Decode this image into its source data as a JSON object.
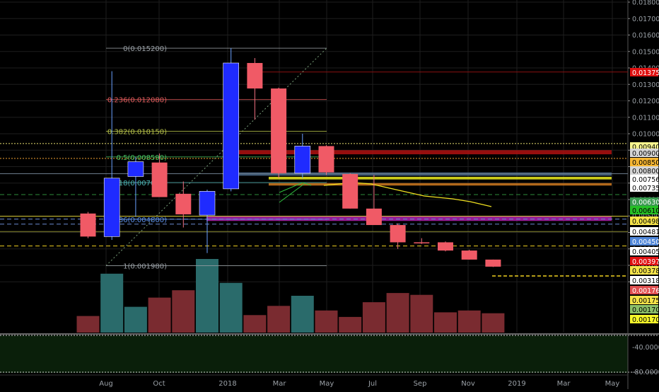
{
  "chart_data": {
    "type": "candlestick",
    "price_axis": {
      "ticks": [
        "0.018000",
        "0.017000",
        "0.016000",
        "0.015000",
        "0.014000",
        "0.013000",
        "0.012000",
        "0.011000",
        "0.010000",
        "0.009000",
        "0.008000",
        "0.007000",
        "0.006000",
        "0.005000",
        "0.004000",
        "0.003000",
        "0.002000",
        "0.001000"
      ],
      "ylim": [
        0.0012,
        0.0185
      ]
    },
    "time_axis": {
      "labels": [
        "Aug",
        "Oct",
        "2018",
        "Mar",
        "May",
        "Jul",
        "Sep",
        "Nov",
        "2019",
        "Mar",
        "May"
      ]
    },
    "candles": [
      {
        "period": "2017-06",
        "open": 0.00515,
        "high": 0.00525,
        "low": 0.00365,
        "close": 0.00375
      },
      {
        "period": "2017-07",
        "open": 0.00375,
        "high": 0.0138,
        "low": 0.00355,
        "close": 0.0073
      },
      {
        "period": "2017-08",
        "open": 0.0074,
        "high": 0.0086,
        "low": 0.00495,
        "close": 0.0083
      },
      {
        "period": "2017-09",
        "open": 0.00825,
        "high": 0.0088,
        "low": 0.00615,
        "close": 0.00615
      },
      {
        "period": "2017-10",
        "open": 0.00635,
        "high": 0.0071,
        "low": 0.0043,
        "close": 0.0051
      },
      {
        "period": "2017-11",
        "open": 0.00505,
        "high": 0.0066,
        "low": 0.00275,
        "close": 0.0065
      },
      {
        "period": "2017-12",
        "open": 0.00665,
        "high": 0.0152,
        "low": 0.0065,
        "close": 0.0143
      },
      {
        "period": "2018-01",
        "open": 0.0143,
        "high": 0.0146,
        "low": 0.01085,
        "close": 0.01275
      },
      {
        "period": "2018-02",
        "open": 0.01275,
        "high": 0.0128,
        "low": 0.0073,
        "close": 0.0076
      },
      {
        "period": "2018-03",
        "open": 0.0076,
        "high": 0.01,
        "low": 0.0073,
        "close": 0.00925
      },
      {
        "period": "2018-04",
        "open": 0.00925,
        "high": 0.0093,
        "low": 0.0075,
        "close": 0.00765
      },
      {
        "period": "2018-05",
        "open": 0.00755,
        "high": 0.0076,
        "low": 0.00545,
        "close": 0.00545
      },
      {
        "period": "2018-06",
        "open": 0.00545,
        "high": 0.0075,
        "low": 0.00445,
        "close": 0.00445
      },
      {
        "period": "2018-07",
        "open": 0.00445,
        "high": 0.00455,
        "low": 0.003,
        "close": 0.0034
      },
      {
        "period": "2018-08",
        "open": 0.0034,
        "high": 0.00365,
        "low": 0.0033,
        "close": 0.00338
      },
      {
        "period": "2018-09",
        "open": 0.0034,
        "high": 0.00345,
        "low": 0.00285,
        "close": 0.0029
      },
      {
        "period": "2018-10",
        "open": 0.0029,
        "high": 0.00295,
        "low": 0.00235,
        "close": 0.00235
      },
      {
        "period": "2018-11",
        "open": 0.00235,
        "high": 0.00235,
        "low": 0.0019,
        "close": 0.00192
      }
    ],
    "volume": [
      {
        "period": "2017-06",
        "value": 0.18,
        "dir": "down"
      },
      {
        "period": "2017-07",
        "value": 0.64,
        "dir": "up"
      },
      {
        "period": "2017-08",
        "value": 0.28,
        "dir": "up"
      },
      {
        "period": "2017-09",
        "value": 0.38,
        "dir": "down"
      },
      {
        "period": "2017-10",
        "value": 0.46,
        "dir": "down"
      },
      {
        "period": "2017-11",
        "value": 0.8,
        "dir": "up"
      },
      {
        "period": "2017-12",
        "value": 0.54,
        "dir": "up"
      },
      {
        "period": "2018-01",
        "value": 0.19,
        "dir": "down"
      },
      {
        "period": "2018-02",
        "value": 0.29,
        "dir": "down"
      },
      {
        "period": "2018-03",
        "value": 0.4,
        "dir": "up"
      },
      {
        "period": "2018-04",
        "value": 0.24,
        "dir": "down"
      },
      {
        "period": "2018-05",
        "value": 0.17,
        "dir": "down"
      },
      {
        "period": "2018-06",
        "value": 0.33,
        "dir": "down"
      },
      {
        "period": "2018-07",
        "value": 0.43,
        "dir": "down"
      },
      {
        "period": "2018-08",
        "value": 0.41,
        "dir": "down"
      },
      {
        "period": "2018-09",
        "value": 0.22,
        "dir": "down"
      },
      {
        "period": "2018-10",
        "value": 0.24,
        "dir": "down"
      },
      {
        "period": "2018-11",
        "value": 0.21,
        "dir": "down"
      }
    ],
    "fibonacci": {
      "levels": [
        {
          "label": "0(0.015200)",
          "value": 0.0152,
          "color": "#9aa0a6"
        },
        {
          "label": "0.236(0.012080)",
          "value": 0.01208,
          "color": "#e05b5b"
        },
        {
          "label": "0.382(0.010150)",
          "value": 0.01015,
          "color": "#b7c24a"
        },
        {
          "label": "0.5(0.008590)",
          "value": 0.00859,
          "color": "#48c060"
        },
        {
          "label": "0.618(0.007030)",
          "value": 0.00703,
          "color": "#4ab0b0"
        },
        {
          "label": "0.786(0.004800)",
          "value": 0.0048,
          "color": "#5b8ee6"
        },
        {
          "label": "1(0.001980)",
          "value": 0.00198,
          "color": "#9aa0a6"
        }
      ]
    },
    "price_tags": [
      {
        "text": "0.013754",
        "bg": "#e01010",
        "fg": "#ffffff"
      },
      {
        "text": "0.009405",
        "bg": "#f7f58e",
        "fg": "#000000"
      },
      {
        "text": "0.009000",
        "bg": "#d6d6d6",
        "fg": "#000000"
      },
      {
        "text": "0.008500",
        "bg": "#f7b733",
        "fg": "#000000"
      },
      {
        "text": "0.008000",
        "bg": "#d6d6d6",
        "fg": "#000000"
      },
      {
        "text": "0.007568",
        "bg": "#ffffff",
        "fg": "#000000"
      },
      {
        "text": "0.007356",
        "bg": "#ffffff",
        "fg": "#000000"
      },
      {
        "text": "0.006300",
        "bg": "#3a9a50",
        "fg": "#ffffff"
      },
      {
        "text": "0.006100",
        "bg": "#25c025",
        "fg": "#000000"
      },
      {
        "text": "0.004985",
        "bg": "#f6e44a",
        "fg": "#000000"
      },
      {
        "text": "0.004810",
        "bg": "#ffffff",
        "fg": "#000000"
      },
      {
        "text": "0.004504",
        "bg": "#4f86d8",
        "fg": "#ffffff"
      },
      {
        "text": "0.004055",
        "bg": "#ffffff",
        "fg": "#000000"
      },
      {
        "text": "0.003978",
        "bg": "#e01010",
        "fg": "#ffffff"
      },
      {
        "text": "0.003780",
        "bg": "#f6e44a",
        "fg": "#000000"
      },
      {
        "text": "0.003180",
        "bg": "#ffffff",
        "fg": "#000000"
      },
      {
        "text": "0.001769",
        "bg": "#e05050",
        "fg": "#ffffff"
      },
      {
        "text": "0.001755",
        "bg": "#f6e44a",
        "fg": "#000000"
      },
      {
        "text": "0.001700",
        "bg": "#8dc06a",
        "fg": "#000000"
      },
      {
        "text": "0.001704",
        "bg": "#f6f62a",
        "fg": "#000000"
      }
    ],
    "horizontal_lines": [
      {
        "value": 0.013754,
        "color": "#8a1010",
        "style": "solid"
      },
      {
        "value": 0.009405,
        "color": "#e8e070",
        "style": "dotted"
      },
      {
        "value": 0.0085,
        "color": "#f0a030",
        "style": "dotted"
      },
      {
        "value": 0.007568,
        "color": "#6a7a8a",
        "style": "solid"
      },
      {
        "value": 0.0063,
        "color": "#2e8b3a",
        "style": "dashed"
      },
      {
        "value": 0.004985,
        "color": "#d6c830",
        "style": "solid"
      },
      {
        "value": 0.00481,
        "color": "#6a8ad0",
        "style": "dashed"
      },
      {
        "value": 0.004504,
        "color": "#6a8ad0",
        "style": "dashed"
      },
      {
        "value": 0.004055,
        "color": "#8a8a30",
        "style": "solid"
      },
      {
        "value": 0.00318,
        "color": "#f0d020",
        "style": "dashed"
      }
    ],
    "zones": [
      {
        "from": 0.009,
        "to": 0.00875,
        "color": "#b01010"
      },
      {
        "from": 0.00765,
        "to": 0.00745,
        "color": "#4a6a8a"
      },
      {
        "from": 0.00738,
        "to": 0.00722,
        "color": "#f0f020"
      },
      {
        "from": 0.007,
        "to": 0.00685,
        "color": "#d07a20"
      },
      {
        "from": 0.005,
        "to": 0.0047,
        "color": "#b020b0"
      }
    ],
    "indicator_pane": {
      "ticks": [
        "-40.0000",
        "-80.0000"
      ],
      "background": "#0a1f0a"
    },
    "colors": {
      "up_candle": "#1f2bff",
      "down_candle": "#f05a66",
      "up_volume": "#2a6b6b",
      "down_volume": "#7a2b30",
      "background": "#000000",
      "grid": "#1e1e1e"
    }
  }
}
